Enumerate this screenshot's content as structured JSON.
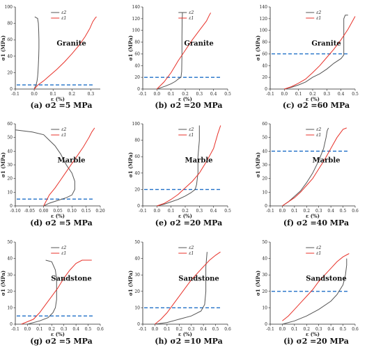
{
  "chart_data": [
    {
      "id": "a",
      "type": "line",
      "caption": "(a) σ2 =5 MPa",
      "rock_label": "Granite",
      "xlabel": "ε (%)",
      "ylabel": "σ1 (MPa)",
      "xlim": [
        -0.1,
        0.35
      ],
      "ylim": [
        0,
        100
      ],
      "xticks": [
        "-0.1",
        "0.0",
        "0.1",
        "0.2",
        "0.3"
      ],
      "yticks": [
        "0",
        "20",
        "40",
        "60",
        "80",
        "100"
      ],
      "confining_stress": 5,
      "series": [
        {
          "name": "ε2",
          "color": "#555555",
          "x": [
            0,
            0.01,
            0.015,
            0.018,
            0.02,
            0.022,
            0.024,
            0.025,
            0.025,
            0.024,
            0.022,
            0.018,
            0.01,
            0.003
          ],
          "y": [
            0,
            5,
            10,
            15,
            20,
            30,
            40,
            50,
            60,
            70,
            80,
            86,
            87,
            88
          ]
        },
        {
          "name": "ε1",
          "color": "#e8322a",
          "x": [
            0,
            0.02,
            0.05,
            0.08,
            0.12,
            0.16,
            0.2,
            0.24,
            0.27,
            0.295,
            0.31,
            0.325,
            0.33
          ],
          "y": [
            0,
            5,
            10,
            16,
            24,
            33,
            43,
            54,
            64,
            74,
            82,
            87,
            88
          ]
        }
      ]
    },
    {
      "id": "b",
      "type": "line",
      "caption": "(b) σ2 =20 MPa",
      "rock_label": "Granite",
      "xlabel": "ε (%)",
      "ylabel": "σ1 (MPa)",
      "xlim": [
        -0.1,
        0.5
      ],
      "ylim": [
        0,
        140
      ],
      "xticks": [
        "-0.1",
        "0.0",
        "0.1",
        "0.2",
        "0.3",
        "0.4",
        "0.5"
      ],
      "yticks": [
        "0",
        "20",
        "40",
        "60",
        "80",
        "100",
        "120",
        "140"
      ],
      "confining_stress": 20,
      "series": [
        {
          "name": "ε2",
          "color": "#555555",
          "x": [
            0,
            0.06,
            0.1,
            0.13,
            0.15,
            0.17,
            0.175,
            0.177,
            0.177,
            0.178,
            0.178,
            0.18,
            0.18
          ],
          "y": [
            0,
            5,
            9,
            13,
            17,
            20,
            30,
            60,
            90,
            110,
            120,
            125,
            130
          ]
        },
        {
          "name": "ε1",
          "color": "#e8322a",
          "x": [
            0,
            0.05,
            0.1,
            0.15,
            0.2,
            0.25,
            0.3,
            0.35,
            0.37,
            0.38
          ],
          "y": [
            0,
            12,
            28,
            48,
            66,
            84,
            100,
            116,
            126,
            130
          ]
        }
      ]
    },
    {
      "id": "c",
      "type": "line",
      "caption": "(c) σ2 =60 MPa",
      "rock_label": "Granite",
      "xlabel": "ε (%)",
      "ylabel": "σ1 (MPa)",
      "xlim": [
        -0.1,
        0.5
      ],
      "ylim": [
        0,
        140
      ],
      "xticks": [
        "-0.1",
        "0.0",
        "0.1",
        "0.2",
        "0.3",
        "0.4",
        "0.5"
      ],
      "yticks": [
        "0",
        "20",
        "40",
        "60",
        "80",
        "100",
        "120",
        "140"
      ],
      "confining_stress": 60,
      "series": [
        {
          "name": "ε2",
          "color": "#555555",
          "x": [
            0,
            0.05,
            0.1,
            0.15,
            0.2,
            0.25,
            0.3,
            0.35,
            0.4,
            0.42,
            0.42,
            0.43,
            0.45
          ],
          "y": [
            0,
            3,
            7,
            12,
            20,
            26,
            34,
            44,
            52,
            58,
            120,
            126,
            126
          ]
        },
        {
          "name": "ε1",
          "color": "#e8322a",
          "x": [
            0,
            0.05,
            0.1,
            0.15,
            0.2,
            0.25,
            0.3,
            0.35,
            0.4,
            0.45,
            0.5
          ],
          "y": [
            0,
            4,
            10,
            17,
            28,
            40,
            54,
            68,
            84,
            102,
            124
          ]
        }
      ]
    },
    {
      "id": "d",
      "type": "line",
      "caption": "(d) σ2 =5 MPa",
      "rock_label": "Marble",
      "xlabel": "ε (%)",
      "ylabel": "σ1 (MPa)",
      "xlim": [
        -0.1,
        0.2
      ],
      "ylim": [
        0,
        60
      ],
      "xticks": [
        "-0.10",
        "-0.05",
        "0.00",
        "0.05",
        "0.10",
        "0.15",
        "0.20"
      ],
      "yticks": [
        "0",
        "10",
        "20",
        "30",
        "40",
        "50",
        "60"
      ],
      "confining_stress": 5,
      "series": [
        {
          "name": "ε2",
          "color": "#555555",
          "x": [
            0,
            0.02,
            0.05,
            0.08,
            0.1,
            0.11,
            0.11,
            0.1,
            0.08,
            0.06,
            0.04,
            0.02,
            0,
            -0.04,
            -0.08,
            -0.1
          ],
          "y": [
            0,
            2,
            4,
            6,
            8,
            12,
            18,
            24,
            30,
            38,
            44,
            48,
            52,
            54,
            55,
            55.5
          ]
        },
        {
          "name": "ε1",
          "color": "#e8322a",
          "x": [
            0,
            0.02,
            0.04,
            0.06,
            0.08,
            0.1,
            0.12,
            0.14,
            0.16,
            0.17,
            0.18
          ],
          "y": [
            0,
            8,
            13,
            19,
            25,
            31,
            37,
            43,
            50,
            54,
            57
          ]
        }
      ]
    },
    {
      "id": "e",
      "type": "line",
      "caption": "(e) σ2 =20 MPa",
      "rock_label": "Marble",
      "xlabel": "ε (%)",
      "ylabel": "σ1 (MPa)",
      "xlim": [
        -0.1,
        0.5
      ],
      "ylim": [
        0,
        100
      ],
      "xticks": [
        "-0.1",
        "0.0",
        "0.1",
        "0.2",
        "0.3",
        "0.4",
        "0.5"
      ],
      "yticks": [
        "0",
        "20",
        "40",
        "60",
        "80",
        "100"
      ],
      "confining_stress": 20,
      "series": [
        {
          "name": "ε2",
          "color": "#555555",
          "x": [
            0,
            0.05,
            0.1,
            0.15,
            0.2,
            0.24,
            0.27,
            0.28,
            0.29,
            0.29,
            0.3,
            0.3,
            0.3
          ],
          "y": [
            0,
            2,
            5,
            8,
            12,
            16,
            20,
            26,
            40,
            60,
            80,
            92,
            98
          ]
        },
        {
          "name": "ε1",
          "color": "#e8322a",
          "x": [
            0,
            0.05,
            0.1,
            0.15,
            0.2,
            0.25,
            0.3,
            0.35,
            0.4,
            0.43,
            0.45
          ],
          "y": [
            0,
            3,
            8,
            14,
            22,
            30,
            40,
            54,
            70,
            88,
            98
          ]
        }
      ]
    },
    {
      "id": "f",
      "type": "line",
      "caption": "(f) σ2 =40 MPa",
      "rock_label": "Marble",
      "xlabel": "ε (%)",
      "ylabel": "σ1 (MPa)",
      "xlim": [
        -0.1,
        0.6
      ],
      "ylim": [
        0,
        60
      ],
      "xticks": [
        "-0.1",
        "0.0",
        "0.1",
        "0.2",
        "0.3",
        "0.4",
        "0.5",
        "0.6"
      ],
      "yticks": [
        "0",
        "10",
        "20",
        "30",
        "40",
        "50",
        "60"
      ],
      "confining_stress": 40,
      "series": [
        {
          "name": "ε2",
          "color": "#555555",
          "x": [
            0,
            0.05,
            0.1,
            0.15,
            0.2,
            0.25,
            0.3,
            0.34,
            0.36,
            0.37,
            0.38
          ],
          "y": [
            0,
            3,
            7,
            11,
            17,
            24,
            33,
            42,
            50,
            55,
            57
          ]
        },
        {
          "name": "ε1",
          "color": "#e8322a",
          "x": [
            0,
            0.05,
            0.1,
            0.15,
            0.2,
            0.25,
            0.3,
            0.35,
            0.4,
            0.45,
            0.5,
            0.53
          ],
          "y": [
            0,
            3,
            6,
            10,
            15,
            20,
            27,
            34,
            42,
            50,
            56,
            57
          ]
        }
      ]
    },
    {
      "id": "g",
      "type": "line",
      "caption": "(g) σ2 =5 MPa",
      "rock_label": "Sandstone",
      "xlabel": "ε (%)",
      "ylabel": "σ1 (MPa)",
      "xlim": [
        -0.1,
        0.6
      ],
      "ylim": [
        0,
        50
      ],
      "xticks": [
        "-0.1",
        "0.0",
        "0.1",
        "0.2",
        "0.3",
        "0.4",
        "0.5",
        "0.6"
      ],
      "yticks": [
        "0",
        "10",
        "20",
        "30",
        "40",
        "50"
      ],
      "confining_stress": 5,
      "series": [
        {
          "name": "ε2",
          "color": "#555555",
          "x": [
            0,
            0.1,
            0.17,
            0.21,
            0.23,
            0.24,
            0.24,
            0.24,
            0.23,
            0.2,
            0.15
          ],
          "y": [
            0,
            2,
            4,
            7,
            10,
            15,
            20,
            27,
            33,
            38,
            39
          ]
        },
        {
          "name": "ε1",
          "color": "#e8322a",
          "x": [
            -0.05,
            0.05,
            0.1,
            0.15,
            0.2,
            0.25,
            0.3,
            0.35,
            0.4,
            0.45,
            0.5,
            0.53
          ],
          "y": [
            0,
            3,
            7,
            12,
            17,
            22,
            28,
            33,
            37,
            39,
            39,
            39
          ]
        }
      ]
    },
    {
      "id": "h",
      "type": "line",
      "caption": "(h) σ2 =10 MPa",
      "rock_label": "Sandstone",
      "xlabel": "ε (%)",
      "ylabel": "σ1 (MPa)",
      "xlim": [
        -0.1,
        0.6
      ],
      "ylim": [
        0,
        50
      ],
      "xticks": [
        "-0.1",
        "0.0",
        "0.1",
        "0.2",
        "0.3",
        "0.4",
        "0.5",
        "0.6"
      ],
      "yticks": [
        "0",
        "10",
        "20",
        "30",
        "40",
        "50"
      ],
      "confining_stress": 10,
      "series": [
        {
          "name": "ε2",
          "color": "#555555",
          "x": [
            0,
            0.1,
            0.2,
            0.3,
            0.38,
            0.41,
            0.42,
            0.42,
            0.43
          ],
          "y": [
            0,
            1,
            3,
            5,
            8,
            12,
            20,
            35,
            44
          ]
        },
        {
          "name": "ε1",
          "color": "#e8322a",
          "x": [
            0,
            0.05,
            0.1,
            0.15,
            0.2,
            0.25,
            0.3,
            0.35,
            0.4,
            0.45,
            0.5,
            0.54
          ],
          "y": [
            0,
            3,
            7,
            12,
            17,
            22,
            27,
            31,
            35,
            39,
            42,
            44
          ]
        }
      ]
    },
    {
      "id": "i",
      "type": "line",
      "caption": "(i) σ2 =20 MPa",
      "rock_label": "Sandstone",
      "xlabel": "ε (%)",
      "ylabel": "σ1 (MPa)",
      "xlim": [
        -0.1,
        0.6
      ],
      "ylim": [
        0,
        50
      ],
      "xticks": [
        "-0.1",
        "0.0",
        "0.1",
        "0.2",
        "0.3",
        "0.4",
        "0.5",
        "0.6"
      ],
      "yticks": [
        "0",
        "10",
        "20",
        "30",
        "40",
        "50"
      ],
      "confining_stress": 20,
      "series": [
        {
          "name": "ε2",
          "color": "#555555",
          "x": [
            0,
            0.1,
            0.2,
            0.3,
            0.4,
            0.45,
            0.5,
            0.52,
            0.53,
            0.53
          ],
          "y": [
            0,
            2,
            5,
            9,
            14,
            18,
            24,
            30,
            36,
            40
          ]
        },
        {
          "name": "ε1",
          "color": "#e8322a",
          "x": [
            0,
            0.05,
            0.1,
            0.15,
            0.2,
            0.25,
            0.3,
            0.35,
            0.4,
            0.45,
            0.5,
            0.55
          ],
          "y": [
            2,
            5,
            9,
            13,
            17,
            21,
            26,
            30,
            34,
            38,
            41,
            43
          ]
        }
      ]
    }
  ]
}
